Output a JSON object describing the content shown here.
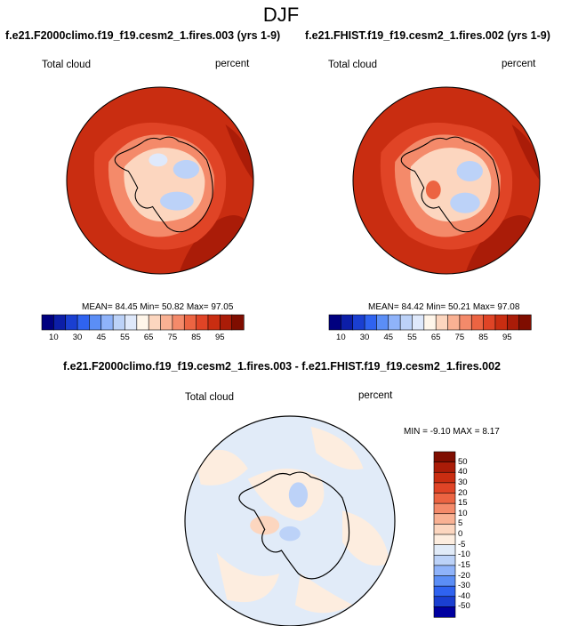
{
  "title": "DJF",
  "panels": [
    {
      "id": "left",
      "title": "f.e21.F2000climo.f19_f19.cesm2_1.fires.003 (yrs 1-9)",
      "variable": "Total cloud",
      "units": "percent",
      "stats": {
        "mean": "84.45",
        "min": "50.82",
        "max": "97.05"
      },
      "stats_text": "MEAN=  84.45   Min=  50.82   Max=  97.05"
    },
    {
      "id": "right",
      "title": "f.e21.FHIST.f19_f19.cesm2_1.fires.002 (yrs 1-9)",
      "variable": "Total cloud",
      "units": "percent",
      "stats": {
        "mean": "84.42",
        "min": "50.21",
        "max": "97.08"
      },
      "stats_text": "MEAN=  84.42   Min=  50.21   Max=  97.08"
    }
  ],
  "diff_panel": {
    "title": "f.e21.F2000climo.f19_f19.cesm2_1.fires.003 - f.e21.FHIST.f19_f19.cesm2_1.fires.002",
    "variable": "Total cloud",
    "units": "percent",
    "stats_text": "MIN =  -9.10  MAX =   8.17"
  },
  "colorbar_main": {
    "labels": [
      "10",
      "30",
      "45",
      "55",
      "65",
      "75",
      "85",
      "95"
    ],
    "colors": [
      "#00007f",
      "#0c1ea8",
      "#1a3fd1",
      "#2f63f0",
      "#5b8ef6",
      "#8fb3fa",
      "#bcd2f8",
      "#dfe9fb",
      "#fff6ea",
      "#fcd6bf",
      "#f9b193",
      "#f48a6a",
      "#ec6442",
      "#e04426",
      "#c92d11",
      "#aa1c08",
      "#7f0d00"
    ]
  },
  "colorbar_diff": {
    "labels": [
      "50",
      "40",
      "30",
      "20",
      "15",
      "10",
      "5",
      "0",
      "-5",
      "-10",
      "-15",
      "-20",
      "-30",
      "-40",
      "-50"
    ],
    "colors": [
      "#7f0d00",
      "#aa1c08",
      "#c92d11",
      "#e04426",
      "#ec6442",
      "#f48a6a",
      "#f9b193",
      "#fcd6bf",
      "#fdeddf",
      "#e1ebf8",
      "#bcd2f8",
      "#8fb3fa",
      "#5b8ef6",
      "#2f63f0",
      "#1a3fd1",
      "#0000a0"
    ]
  }
}
